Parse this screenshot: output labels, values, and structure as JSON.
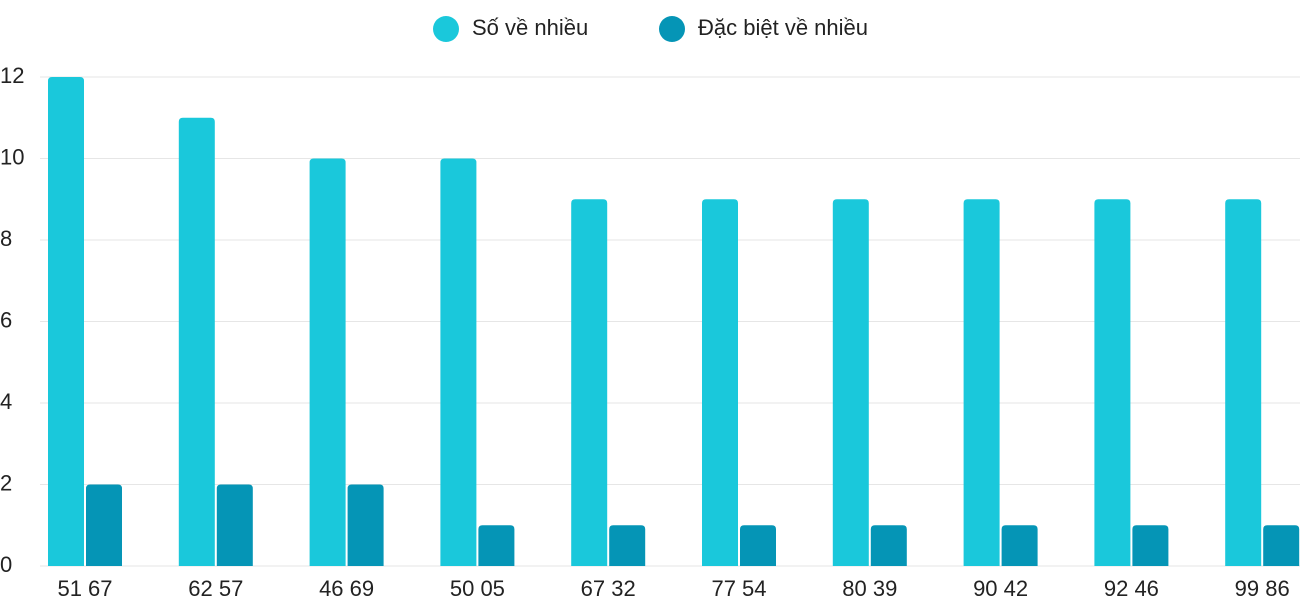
{
  "chart_data": {
    "type": "bar",
    "categories": [
      "51 67",
      "62 57",
      "46 69",
      "50 05",
      "67 32",
      "77 54",
      "80 39",
      "90 42",
      "92 46",
      "99 86"
    ],
    "series": [
      {
        "name": "Số về nhiều",
        "color": "#1ac8db",
        "values": [
          12,
          11,
          10,
          10,
          9,
          9,
          9,
          9,
          9,
          9
        ]
      },
      {
        "name": "Đặc biệt về nhiều",
        "color": "#0595b6",
        "values": [
          2,
          2,
          2,
          1,
          1,
          1,
          1,
          1,
          1,
          1
        ]
      }
    ],
    "ylim": [
      0,
      12
    ],
    "yticks": [
      0,
      2,
      4,
      6,
      8,
      10,
      12
    ],
    "grid": true,
    "legend": "top"
  }
}
